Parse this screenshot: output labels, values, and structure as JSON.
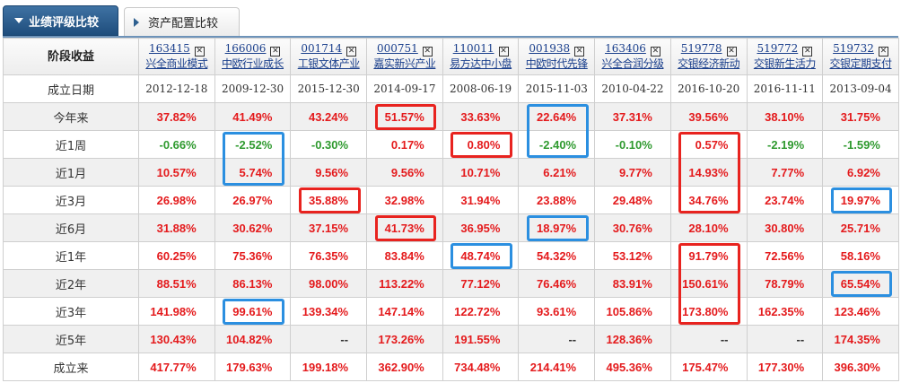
{
  "tabs": [
    {
      "label": "业绩评级比较",
      "active": true
    },
    {
      "label": "资产配置比较",
      "active": false
    }
  ],
  "table": {
    "corner": "阶段收益",
    "remove_icon": "close-box-icon",
    "funds": [
      {
        "code": "163415",
        "name": "兴全商业模式"
      },
      {
        "code": "166006",
        "name": "中欧行业成长"
      },
      {
        "code": "001714",
        "name": "工银文体产业"
      },
      {
        "code": "000751",
        "name": "嘉实新兴产业"
      },
      {
        "code": "110011",
        "name": "易方达中小盘"
      },
      {
        "code": "001938",
        "name": "中欧时代先锋"
      },
      {
        "code": "163406",
        "name": "兴全合润分级"
      },
      {
        "code": "519778",
        "name": "交银经济新动"
      },
      {
        "code": "519772",
        "name": "交银新生活力"
      },
      {
        "code": "519732",
        "name": "交银定期支付"
      }
    ],
    "rows": [
      {
        "label": "成立日期",
        "type": "date",
        "values": [
          "2012-12-18",
          "2009-12-30",
          "2015-12-30",
          "2014-09-17",
          "2008-06-19",
          "2015-11-03",
          "2010-04-22",
          "2016-10-20",
          "2016-11-11",
          "2013-09-04"
        ]
      },
      {
        "label": "今年来",
        "values": [
          "37.82%",
          "41.49%",
          "43.24%",
          "51.57%",
          "33.63%",
          "22.64%",
          "37.31%",
          "39.56%",
          "38.10%",
          "31.75%"
        ]
      },
      {
        "label": "近1周",
        "values": [
          "-0.66%",
          "-2.52%",
          "-0.30%",
          "0.17%",
          "0.80%",
          "-2.40%",
          "-0.10%",
          "0.57%",
          "-2.19%",
          "-1.59%"
        ]
      },
      {
        "label": "近1月",
        "values": [
          "10.57%",
          "5.74%",
          "9.56%",
          "9.56%",
          "10.71%",
          "6.21%",
          "9.77%",
          "14.93%",
          "7.77%",
          "6.92%"
        ]
      },
      {
        "label": "近3月",
        "values": [
          "26.98%",
          "26.97%",
          "35.88%",
          "32.98%",
          "31.94%",
          "23.88%",
          "29.48%",
          "34.76%",
          "23.74%",
          "19.97%"
        ]
      },
      {
        "label": "近6月",
        "values": [
          "31.88%",
          "30.62%",
          "37.15%",
          "41.73%",
          "36.95%",
          "18.97%",
          "30.76%",
          "28.10%",
          "30.80%",
          "25.71%"
        ]
      },
      {
        "label": "近1年",
        "values": [
          "60.25%",
          "75.36%",
          "76.35%",
          "83.84%",
          "48.74%",
          "54.32%",
          "53.12%",
          "91.79%",
          "72.56%",
          "58.16%"
        ]
      },
      {
        "label": "近2年",
        "values": [
          "88.51%",
          "86.13%",
          "98.00%",
          "113.22%",
          "77.12%",
          "76.46%",
          "83.91%",
          "150.61%",
          "78.79%",
          "65.54%"
        ]
      },
      {
        "label": "近3年",
        "values": [
          "141.98%",
          "99.61%",
          "139.34%",
          "147.14%",
          "122.72%",
          "93.61%",
          "105.86%",
          "173.80%",
          "162.35%",
          "123.46%"
        ]
      },
      {
        "label": "近5年",
        "values": [
          "130.43%",
          "104.82%",
          "--",
          "173.26%",
          "191.55%",
          "--",
          "128.36%",
          "--",
          "--",
          "174.35%"
        ]
      },
      {
        "label": "成立来",
        "values": [
          "417.77%",
          "179.63%",
          "199.18%",
          "362.90%",
          "734.48%",
          "214.41%",
          "495.36%",
          "175.47%",
          "177.30%",
          "396.30%"
        ]
      }
    ]
  },
  "colors": {
    "positive": "#e41a1c",
    "negative": "#2f9a2f",
    "highlight_red": "#e8231f",
    "highlight_blue": "#2b8fe0"
  },
  "highlights": [
    {
      "col": 3,
      "from": 1,
      "to": 1,
      "color": "red"
    },
    {
      "col": 5,
      "from": 1,
      "to": 2,
      "color": "blue"
    },
    {
      "col": 1,
      "from": 2,
      "to": 3,
      "color": "blue"
    },
    {
      "col": 4,
      "from": 2,
      "to": 2,
      "color": "red"
    },
    {
      "col": 7,
      "from": 2,
      "to": 4,
      "color": "red"
    },
    {
      "col": 2,
      "from": 4,
      "to": 4,
      "color": "red"
    },
    {
      "col": 9,
      "from": 4,
      "to": 4,
      "color": "blue"
    },
    {
      "col": 3,
      "from": 5,
      "to": 5,
      "color": "red"
    },
    {
      "col": 5,
      "from": 5,
      "to": 5,
      "color": "blue"
    },
    {
      "col": 4,
      "from": 6,
      "to": 6,
      "color": "blue"
    },
    {
      "col": 7,
      "from": 6,
      "to": 8,
      "color": "red"
    },
    {
      "col": 9,
      "from": 7,
      "to": 7,
      "color": "blue"
    },
    {
      "col": 1,
      "from": 8,
      "to": 8,
      "color": "blue"
    }
  ]
}
